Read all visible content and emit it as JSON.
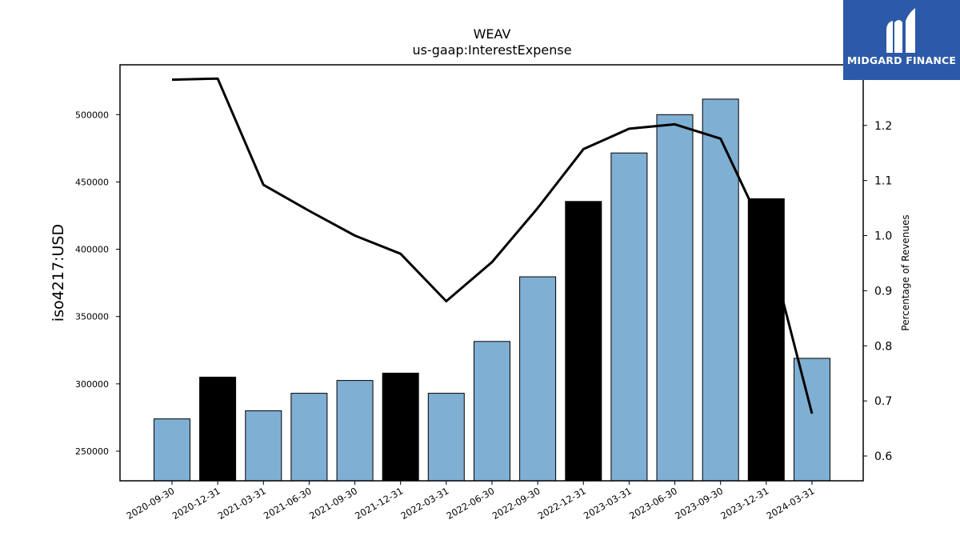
{
  "chart_data": {
    "type": "bar",
    "title": "WEAV",
    "subtitle": "us-gaap:InterestExpense",
    "ylabel": "iso4217:USD",
    "y2label": "Percentage of Revenues",
    "ylim": [
      228000,
      537000
    ],
    "y2lim": [
      0.555,
      1.31
    ],
    "categories": [
      "2020-09-30",
      "2020-12-31",
      "2021-03-31",
      "2021-06-30",
      "2021-09-30",
      "2021-12-31",
      "2022-03-31",
      "2022-06-30",
      "2022-09-30",
      "2022-12-31",
      "2023-03-31",
      "2023-06-30",
      "2023-09-30",
      "2023-12-31",
      "2024-03-31"
    ],
    "yticks": [
      250000,
      300000,
      350000,
      400000,
      450000,
      500000
    ],
    "y2ticks": [
      0.6,
      0.7,
      0.8,
      0.9,
      1.0,
      1.1,
      1.2
    ],
    "series": [
      {
        "type": "bar",
        "values": [
          274000,
          305000,
          280000,
          293000,
          302500,
          308000,
          293000,
          331500,
          379500,
          435500,
          471500,
          500000,
          511500,
          437500,
          319000
        ],
        "colors": [
          "#7fafd3",
          "#000000",
          "#7fafd3",
          "#7fafd3",
          "#7fafd3",
          "#000000",
          "#7fafd3",
          "#7fafd3",
          "#7fafd3",
          "#000000",
          "#7fafd3",
          "#7fafd3",
          "#7fafd3",
          "#000000",
          "#7fafd3"
        ]
      },
      {
        "type": "line",
        "axis": "right",
        "color": "#000000",
        "values": [
          1.283,
          1.285,
          1.092,
          1.045,
          1.0,
          0.967,
          0.881,
          0.952,
          1.05,
          1.157,
          1.194,
          1.202,
          1.176,
          1.0,
          0.677
        ]
      }
    ],
    "grid": false
  },
  "logo": {
    "text": "MIDGARD FINANCE",
    "background": "#2c5aa8"
  }
}
